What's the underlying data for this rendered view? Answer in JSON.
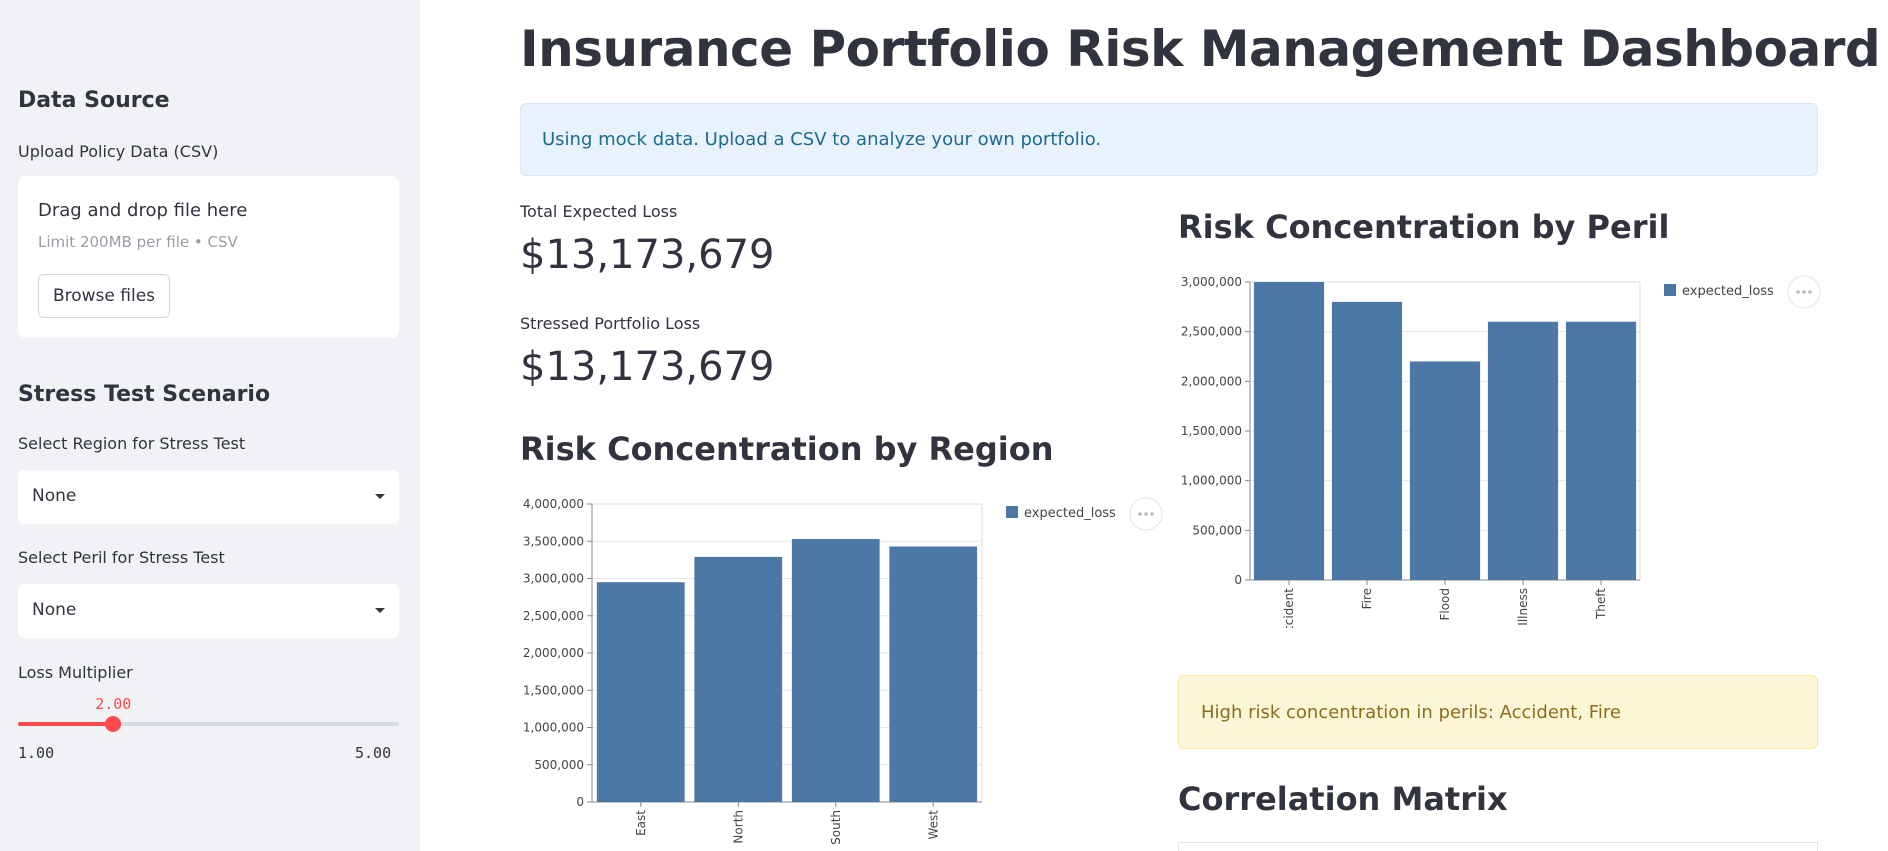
{
  "sidebar": {
    "data_source_title": "Data Source",
    "upload_label": "Upload Policy Data (CSV)",
    "uploader": {
      "drag_text": "Drag and drop file here",
      "limit_text": "Limit 200MB per file • CSV",
      "browse_label": "Browse files"
    },
    "stress_title": "Stress Test Scenario",
    "region_label": "Select Region for Stress Test",
    "region_value": "None",
    "peril_label": "Select Peril for Stress Test",
    "peril_value": "None",
    "multiplier_label": "Loss Multiplier",
    "multiplier": {
      "value": 2.0,
      "value_text": "2.00",
      "min": 1.0,
      "max": 5.0,
      "min_text": "1.00",
      "max_text": "5.00"
    }
  },
  "main": {
    "title": "Insurance Portfolio Risk Management Dashboard",
    "info_message": "Using mock data. Upload a CSV to analyze your own portfolio.",
    "metrics": [
      {
        "label": "Total Expected Loss",
        "value": "$13,173,679"
      },
      {
        "label": "Stressed Portfolio Loss",
        "value": "$13,173,679"
      }
    ],
    "region_heading": "Risk Concentration by Region",
    "peril_heading": "Risk Concentration by Peril",
    "warning_message": "High risk concentration in perils: Accident, Fire",
    "correlation_heading": "Correlation Matrix"
  },
  "colors": {
    "accent": "#ff4b4b",
    "bar": "#4c78a8",
    "info_bg": "#e8f2fc",
    "warning_bg": "#fdf6d6",
    "sidebar_bg": "#f0f2f6"
  },
  "chart_data": [
    {
      "type": "bar",
      "categories": [
        "East",
        "North",
        "South",
        "West"
      ],
      "series": [
        {
          "name": "expected_loss",
          "values": [
            2950000,
            3290000,
            3530000,
            3430000
          ]
        }
      ],
      "ylim": [
        0,
        4000000
      ],
      "yticks": [
        0,
        500000,
        1000000,
        1500000,
        2000000,
        2500000,
        3000000,
        3500000,
        4000000
      ],
      "ytick_labels": [
        "0",
        "500,000",
        "1,000,000",
        "1,500,000",
        "2,000,000",
        "2,500,000",
        "3,000,000",
        "3,500,000",
        "4,000,000"
      ],
      "legend": "top-right",
      "grid": true
    },
    {
      "type": "bar",
      "categories": [
        "Accident",
        "Fire",
        "Flood",
        "Illness",
        "Theft"
      ],
      "series": [
        {
          "name": "expected_loss",
          "values": [
            3000000,
            2800000,
            2200000,
            2600000,
            2600000
          ]
        }
      ],
      "ylim": [
        0,
        3000000
      ],
      "yticks": [
        0,
        500000,
        1000000,
        1500000,
        2000000,
        2500000,
        3000000
      ],
      "ytick_labels": [
        "0",
        "500,000",
        "1,000,000",
        "1,500,000",
        "2,000,000",
        "2,500,000",
        "3,000,000"
      ],
      "legend": "top-right",
      "grid": true
    }
  ]
}
